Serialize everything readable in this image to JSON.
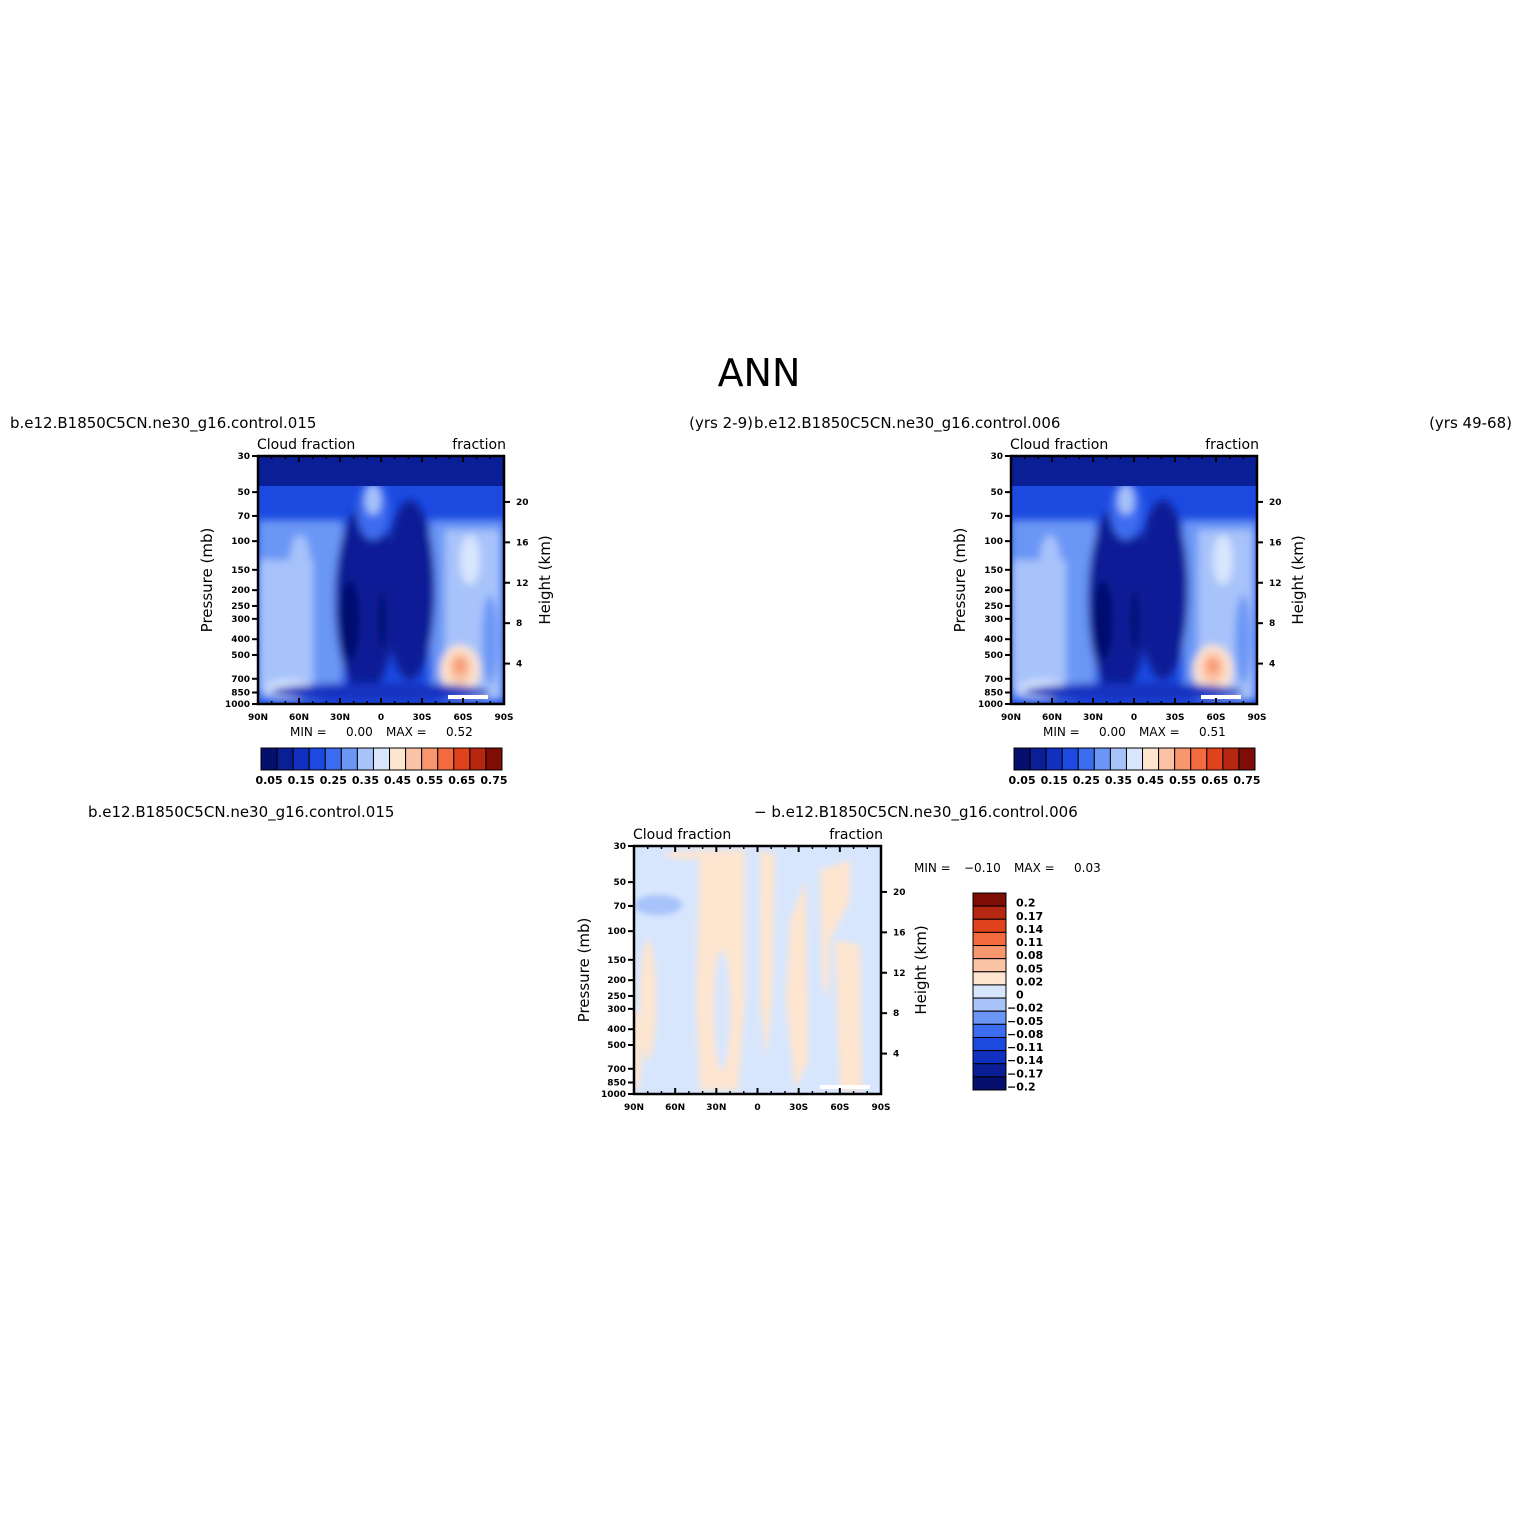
{
  "page": {
    "title": "ANN",
    "top_left_case": "b.e12.B1850C5CN.ne30_g16.control.015",
    "top_left_years": "(yrs 2-9)",
    "top_right_case": "b.e12.B1850C5CN.ne30_g16.control.006",
    "top_right_years": "(yrs 49-68)",
    "diff_left_case": "b.e12.B1850C5CN.ne30_g16.control.015",
    "diff_right_case": "− b.e12.B1850C5CN.ne30_g16.control.006"
  },
  "labels": {
    "variable": "Cloud fraction",
    "units": "fraction",
    "y_left": "Pressure (mb)",
    "y_right": "Height (km)",
    "min_label": "MIN =",
    "max_label": "MAX ="
  },
  "stats": {
    "panel1": {
      "min": "0.00",
      "max": "0.52"
    },
    "panel2": {
      "min": "0.00",
      "max": "0.51"
    },
    "panel3": {
      "min": "−0.10",
      "max": "0.03"
    }
  },
  "colors": {
    "abs_levels": [
      "#05106e",
      "#0a1e96",
      "#1230c0",
      "#1c4ae0",
      "#3c6cf0",
      "#6b96f5",
      "#a7c3fa",
      "#d8e6fd",
      "#fde5d0",
      "#fbc3a5",
      "#f8966d",
      "#f26a3e",
      "#e0431c",
      "#b52710",
      "#7d0d05"
    ],
    "diff_levels": [
      "#05106e",
      "#0a1e96",
      "#1230c0",
      "#1c4ae0",
      "#3c6cf0",
      "#6b96f5",
      "#a7c3fa",
      "#d8e6fd",
      "#fde5d0",
      "#fbc3a5",
      "#f8966d",
      "#f26a3e",
      "#e0431c",
      "#b52710",
      "#7d0d05"
    ]
  },
  "chart_data": [
    {
      "type": "heatmap",
      "title": "b.e12.B1850C5CN.ne30_g16.control.015 (yrs 2-9)",
      "subtitle_left": "Cloud fraction",
      "subtitle_right": "fraction",
      "xlabel": "",
      "ylabel": "Pressure (mb)",
      "ylabel_right": "Height (km)",
      "x_ticks": [
        "90N",
        "60N",
        "30N",
        "0",
        "30S",
        "60S",
        "90S"
      ],
      "y_ticks": [
        "30",
        "50",
        "70",
        "100",
        "150",
        "200",
        "250",
        "300",
        "400",
        "500",
        "700",
        "850",
        "1000"
      ],
      "y_right_ticks": [
        "20",
        "16",
        "12",
        "8",
        "4"
      ],
      "y_scale": "log",
      "colorbar": {
        "orientation": "horizontal",
        "ticks": [
          "0.05",
          "0.15",
          "0.25",
          "0.35",
          "0.45",
          "0.55",
          "0.65",
          "0.75"
        ],
        "levels": [
          0.05,
          0.1,
          0.15,
          0.2,
          0.25,
          0.3,
          0.35,
          0.4,
          0.45,
          0.5,
          0.55,
          0.6,
          0.65,
          0.7,
          0.75
        ]
      },
      "min": 0.0,
      "max": 0.52
    },
    {
      "type": "heatmap",
      "title": "b.e12.B1850C5CN.ne30_g16.control.006 (yrs 49-68)",
      "subtitle_left": "Cloud fraction",
      "subtitle_right": "fraction",
      "xlabel": "",
      "ylabel": "Pressure (mb)",
      "ylabel_right": "Height (km)",
      "x_ticks": [
        "90N",
        "60N",
        "30N",
        "0",
        "30S",
        "60S",
        "90S"
      ],
      "y_ticks": [
        "30",
        "50",
        "70",
        "100",
        "150",
        "200",
        "250",
        "300",
        "400",
        "500",
        "700",
        "850",
        "1000"
      ],
      "y_right_ticks": [
        "20",
        "16",
        "12",
        "8",
        "4"
      ],
      "y_scale": "log",
      "colorbar": {
        "orientation": "horizontal",
        "ticks": [
          "0.05",
          "0.15",
          "0.25",
          "0.35",
          "0.45",
          "0.55",
          "0.65",
          "0.75"
        ],
        "levels": [
          0.05,
          0.1,
          0.15,
          0.2,
          0.25,
          0.3,
          0.35,
          0.4,
          0.45,
          0.5,
          0.55,
          0.6,
          0.65,
          0.7,
          0.75
        ]
      },
      "min": 0.0,
      "max": 0.51
    },
    {
      "type": "heatmap",
      "title": "b.e12.B1850C5CN.ne30_g16.control.015 − b.e12.B1850C5CN.ne30_g16.control.006",
      "subtitle_left": "Cloud fraction",
      "subtitle_right": "fraction",
      "xlabel": "",
      "ylabel": "Pressure (mb)",
      "ylabel_right": "Height (km)",
      "x_ticks": [
        "90N",
        "60N",
        "30N",
        "0",
        "30S",
        "60S",
        "90S"
      ],
      "y_ticks": [
        "30",
        "50",
        "70",
        "100",
        "150",
        "200",
        "250",
        "300",
        "400",
        "500",
        "700",
        "850",
        "1000"
      ],
      "y_right_ticks": [
        "20",
        "16",
        "12",
        "8",
        "4"
      ],
      "y_scale": "log",
      "colorbar": {
        "orientation": "vertical",
        "ticks": [
          "0.2",
          "0.17",
          "0.14",
          "0.11",
          "0.08",
          "0.05",
          "0.02",
          "0",
          "−0.02",
          "−0.05",
          "−0.08",
          "−0.11",
          "−0.14",
          "−0.17",
          "−0.2"
        ]
      },
      "min": -0.1,
      "max": 0.03
    }
  ]
}
